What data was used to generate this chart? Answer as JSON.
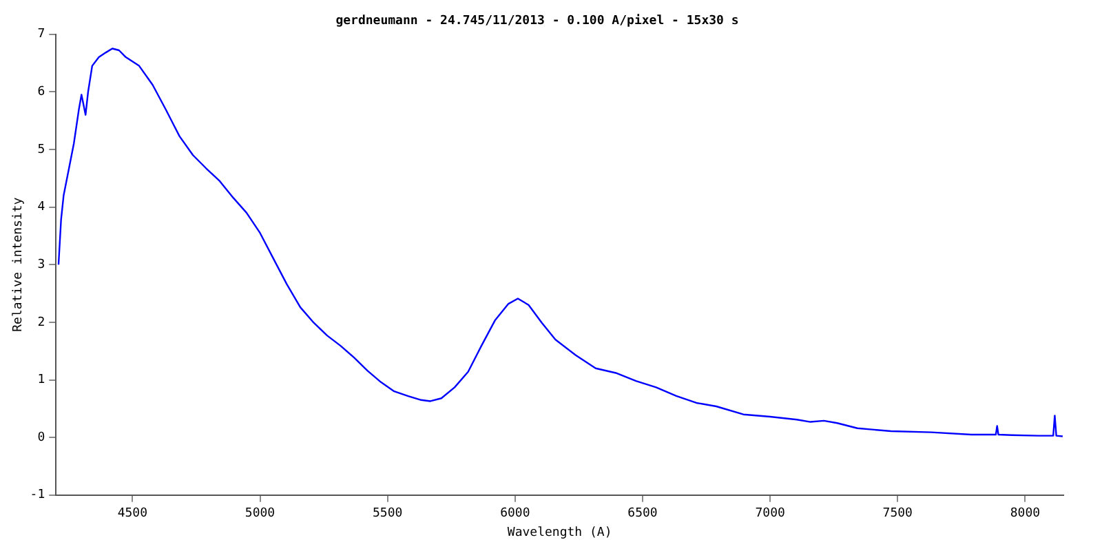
{
  "chart_data": {
    "type": "line",
    "title": "gerdneumann - 24.745/11/2013 - 0.100 A/pixel - 15x30 s",
    "xlabel": "Wavelength (A)",
    "ylabel": "Relative intensity",
    "series": [
      {
        "color": "#0000ff",
        "x": [
          4210,
          4220,
          4230,
          4250,
          4270,
          4290,
          4300,
          4316,
          4326,
          4342,
          4368,
          4395,
          4421,
          4447,
          4474,
          4526,
          4579,
          4632,
          4684,
          4737,
          4789,
          4842,
          4895,
          4947,
          5000,
          5053,
          5105,
          5158,
          5211,
          5263,
          5316,
          5368,
          5421,
          5474,
          5526,
          5579,
          5632,
          5668,
          5711,
          5763,
          5816,
          5868,
          5921,
          5974,
          6011,
          6053,
          6105,
          6158,
          6237,
          6316,
          6395,
          6474,
          6553,
          6632,
          6711,
          6789,
          6895,
          7000,
          7105,
          7158,
          7211,
          7263,
          7342,
          7474,
          7632,
          7789,
          7885,
          7890,
          7895,
          7947,
          8053,
          8110,
          8116,
          8122,
          8147
        ],
        "values": [
          3.0,
          3.78,
          4.2,
          4.65,
          5.1,
          5.7,
          5.95,
          5.6,
          6.0,
          6.45,
          6.6,
          6.68,
          6.75,
          6.72,
          6.6,
          6.45,
          6.12,
          5.68,
          5.23,
          4.9,
          4.67,
          4.45,
          4.16,
          3.9,
          3.55,
          3.1,
          2.66,
          2.26,
          1.99,
          1.77,
          1.59,
          1.39,
          1.16,
          0.96,
          0.8,
          0.72,
          0.65,
          0.63,
          0.68,
          0.87,
          1.14,
          1.59,
          2.03,
          2.32,
          2.41,
          2.3,
          1.99,
          1.7,
          1.43,
          1.2,
          1.12,
          0.98,
          0.87,
          0.72,
          0.6,
          0.54,
          0.4,
          0.36,
          0.31,
          0.27,
          0.29,
          0.25,
          0.16,
          0.11,
          0.09,
          0.05,
          0.05,
          0.2,
          0.05,
          0.04,
          0.03,
          0.03,
          0.38,
          0.03,
          0.02
        ]
      }
    ],
    "xlim": [
      4200,
      8150
    ],
    "xticks": [
      4500,
      5000,
      5500,
      6000,
      6500,
      7000,
      7500,
      8000
    ],
    "ylim": [
      -1,
      7
    ],
    "yticks": [
      -1,
      0,
      1,
      2,
      3,
      4,
      5,
      6,
      7
    ],
    "grid": false,
    "legend": false,
    "marker": "none",
    "line_style": "solid"
  }
}
